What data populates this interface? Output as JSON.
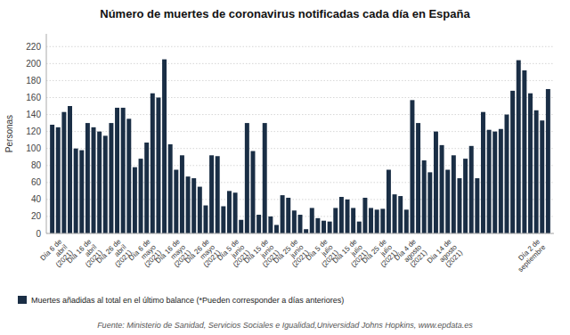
{
  "chart_data": {
    "type": "bar",
    "title": "Número de muertes de coronavirus notificadas cada día en España",
    "y_label": "Personas",
    "source": "Fuente: Ministerio de Sanidad, Servicios Sociales e Igualidad,Universidad Johns Hopkins, www.epdata.es",
    "categories": [
      null,
      "Día 6 de\nabril\n(2021)",
      null,
      null,
      null,
      null,
      "Día 16 de\nabril\n(2021)",
      null,
      null,
      null,
      null,
      "Día 26 de\nabril\n(2021)",
      null,
      null,
      null,
      null,
      "Día 6 de\nmayo\n(2021)",
      null,
      null,
      null,
      null,
      "Día 16 de\nmayo\n(2021)",
      null,
      null,
      null,
      null,
      "Día 26 de\nmayo\n(2021)",
      null,
      null,
      null,
      null,
      "Día 5 de\njunio\n(2021)",
      null,
      null,
      null,
      null,
      "Día 15 de\njunio\n(2021)",
      null,
      null,
      null,
      null,
      "Día 25 de\njunio\n(2021)",
      null,
      null,
      null,
      null,
      "Día 5 de\njulio\n(2021)",
      null,
      null,
      null,
      null,
      "Día 15 de\njulio\n(2021)",
      null,
      null,
      null,
      null,
      "Día 25 de\njulio\n(2021)",
      null,
      null,
      null,
      null,
      "Día 4 de\nagosto\n(2021)",
      null,
      null,
      null,
      null,
      null,
      "Día 14 de\nagosto\n(2021)",
      null,
      null,
      null,
      null,
      null,
      null,
      null,
      null,
      null,
      null,
      null,
      null,
      null,
      null,
      "Día 2 de\nseptiembre",
      null,
      null
    ],
    "series": [
      {
        "name": "Muertes añadidas al total en el último balance (*Pueden corresponder a días anteriores)",
        "color": "#1a2e45",
        "values": [
          128,
          125,
          143,
          150,
          100,
          98,
          130,
          125,
          120,
          115,
          130,
          148,
          148,
          135,
          78,
          88,
          107,
          165,
          160,
          205,
          105,
          75,
          92,
          67,
          65,
          55,
          33,
          92,
          91,
          32,
          50,
          48,
          16,
          130,
          97,
          22,
          130,
          20,
          10,
          45,
          42,
          27,
          22,
          5,
          30,
          18,
          15,
          14,
          30,
          43,
          40,
          30,
          14,
          42,
          30,
          28,
          29,
          75,
          46,
          44,
          28,
          157,
          130,
          86,
          72,
          120,
          104,
          75,
          92,
          65,
          88,
          103,
          65,
          143,
          122,
          120,
          123,
          140,
          168,
          204,
          192,
          165,
          145,
          133,
          170
        ]
      }
    ],
    "ylim": [
      0,
      235
    ],
    "yticks": [
      0,
      20,
      40,
      60,
      80,
      100,
      120,
      140,
      160,
      180,
      200,
      220
    ],
    "grid": true,
    "legend": "bottom"
  }
}
